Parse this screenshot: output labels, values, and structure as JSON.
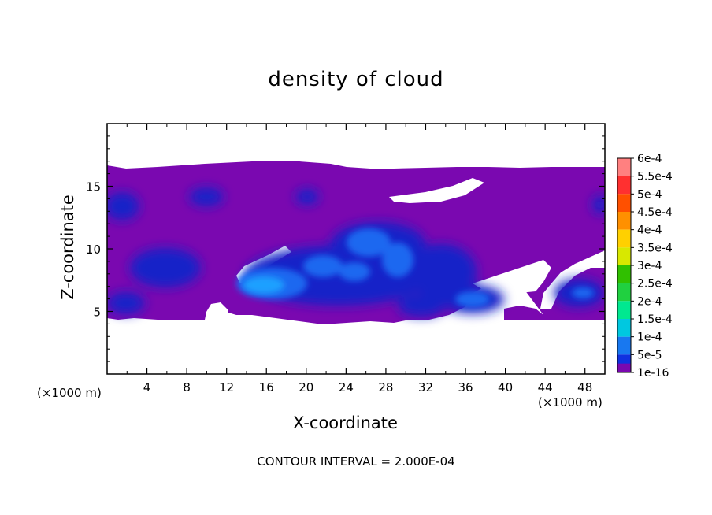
{
  "chart_data": {
    "type": "heatmap",
    "title": "density of cloud",
    "xlabel": "X-coordinate",
    "ylabel": "Z-coordinate",
    "x_unit_label": "(×1000 m)",
    "x_ticks": [
      "4",
      "8",
      "12",
      "16",
      "20",
      "24",
      "28",
      "32",
      "36",
      "40",
      "44",
      "48"
    ],
    "y_ticks": [
      "5",
      "10",
      "15"
    ],
    "xlim": [
      0,
      50
    ],
    "ylim": [
      0,
      20
    ],
    "colorbar": {
      "labels": [
        "6e-4",
        "5.5e-4",
        "5e-4",
        "4.5e-4",
        "4e-4",
        "3.5e-4",
        "3e-4",
        "2.5e-4",
        "2e-4",
        "1.5e-4",
        "1e-4",
        "5e-5",
        "1e-16"
      ],
      "colors": [
        "#ff8080",
        "#ff3030",
        "#ff5000",
        "#ff9000",
        "#ffd000",
        "#d8e800",
        "#30c000",
        "#20d040",
        "#00e890",
        "#00c8e0",
        "#1878f0",
        "#1030e0",
        "#08089c",
        "#7a08b0"
      ]
    },
    "contour_interval_text": "CONTOUR INTERVAL = 2.000E-04",
    "cloud_field": {
      "cloud_base_z": 4.2,
      "cloud_top_z": [
        16.4,
        16.5,
        16.7,
        17.0,
        16.8,
        16.5,
        16.4,
        16.4
      ],
      "values": [
        {
          "x": 15.5,
          "z": 7.0,
          "v": 0.00015
        },
        {
          "x": 20.0,
          "z": 7.8,
          "v": 0.00012
        },
        {
          "x": 23.5,
          "z": 8.5,
          "v": 0.00012
        },
        {
          "x": 26.0,
          "z": 10.5,
          "v": 0.00012
        },
        {
          "x": 23.0,
          "z": 11.0,
          "v": 0.0001
        },
        {
          "x": 30.0,
          "z": 9.0,
          "v": 0.0001
        },
        {
          "x": 34.5,
          "z": 8.0,
          "v": 0.0001
        },
        {
          "x": 37.0,
          "z": 5.5,
          "v": 8e-05
        },
        {
          "x": 8.0,
          "z": 8.0,
          "v": 7e-05
        },
        {
          "x": 2.0,
          "z": 13.5,
          "v": 6e-05
        },
        {
          "x": 10.0,
          "z": 14.0,
          "v": 5e-05
        },
        {
          "x": 46.5,
          "z": 6.5,
          "v": 7e-05
        },
        {
          "x": 2.0,
          "z": 6.0,
          "v": 5e-05
        },
        {
          "x": 49.0,
          "z": 13.5,
          "v": 5e-05
        }
      ]
    }
  }
}
